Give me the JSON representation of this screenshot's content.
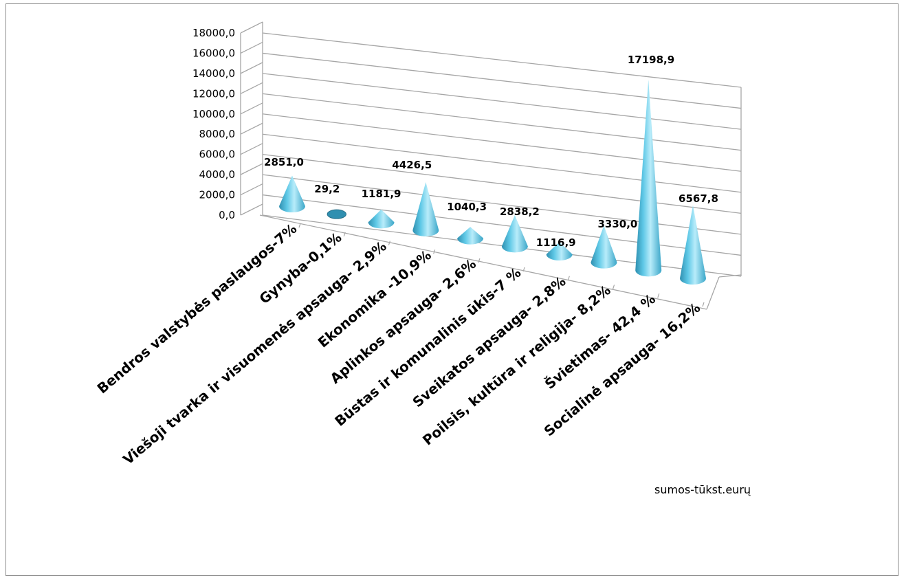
{
  "chart_data": {
    "type": "bar",
    "shape": "cone-3d",
    "categories": [
      "Bendros valstybės paslaugos-7%",
      "Gynyba-0,1%",
      "Viešoji tvarka ir visuomenės apsauga- 2,9%",
      "Ekonomika -10,9%",
      "Aplinkos apsauga- 2,6%",
      "Būstas ir komunalinis ūkis-7 %",
      "Sveikatos apsauga- 2,8%",
      "Poilsis, kultūra ir religija- 8,2%",
      "Švietimas- 42,4 %",
      "Socialinė apsauga- 16,2%"
    ],
    "values": [
      2851.0,
      29.2,
      1181.9,
      4426.5,
      1040.3,
      2838.2,
      1116.9,
      3330.0,
      17198.9,
      6567.8
    ],
    "value_labels": [
      "2851,0",
      "29,2",
      "1181,9",
      "4426,5",
      "1040,3",
      "2838,2",
      "1116,9",
      "3330,0",
      "17198,9",
      "6567,8"
    ],
    "y_ticks": [
      "0,0",
      "2000,0",
      "4000,0",
      "6000,0",
      "8000,0",
      "10000,0",
      "12000,0",
      "14000,0",
      "16000,0",
      "18000,0"
    ],
    "ylim": [
      0,
      18000
    ],
    "grid": true,
    "legend": "none",
    "annotation": "sumos-tūkst.eurų",
    "colors": {
      "cone_light": "#b8ecfa",
      "cone_mid": "#5ec8e6",
      "cone_dark": "#2f8fb0",
      "grid": "#a6a6a6"
    }
  }
}
